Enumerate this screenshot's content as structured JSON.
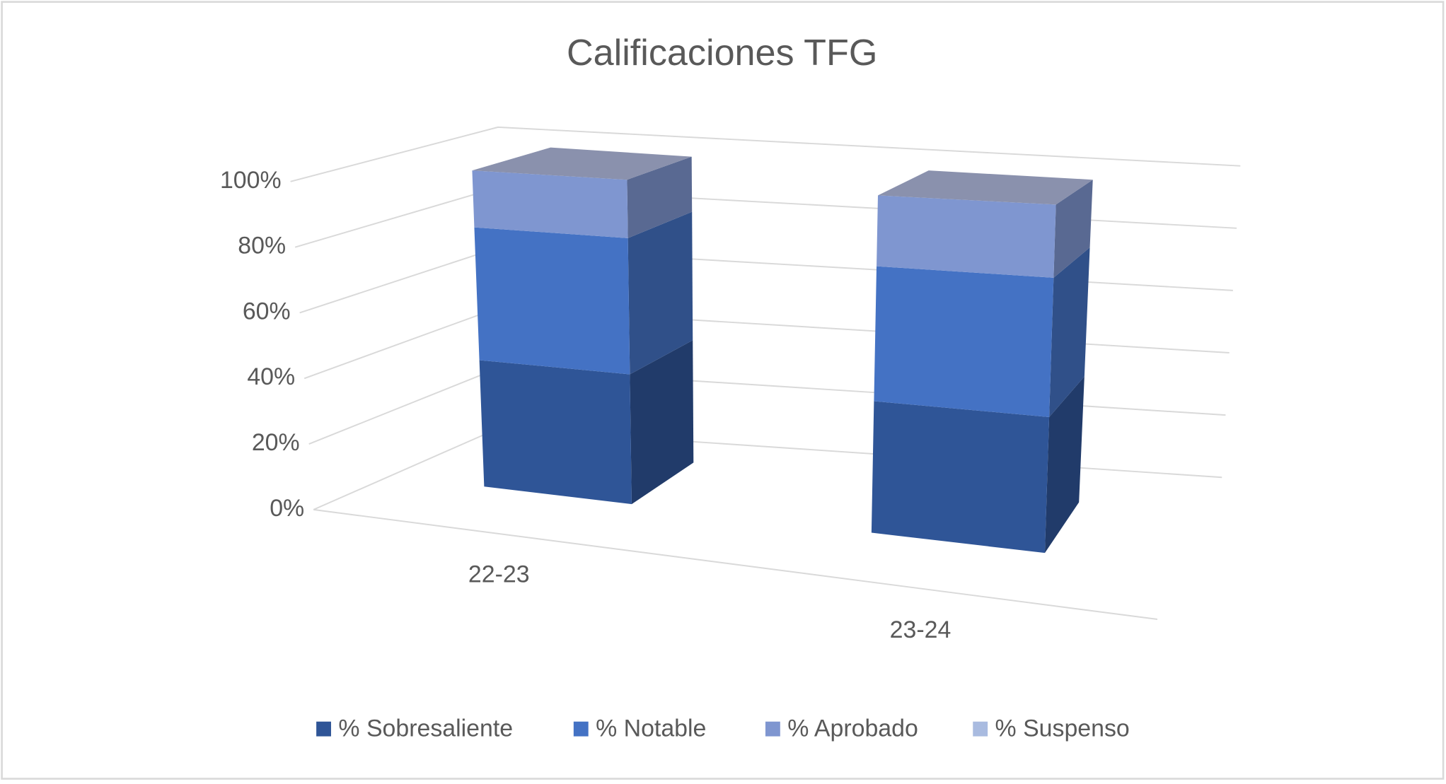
{
  "chart_data": {
    "type": "bar3d_stacked",
    "title": "Calificaciones TFG",
    "categories": [
      "22-23",
      "23-24"
    ],
    "series": [
      {
        "name": "% Sobresaliente",
        "color": "#2f5597",
        "values": [
          40,
          39
        ]
      },
      {
        "name": "% Notable",
        "color": "#4472c4",
        "values": [
          42,
          40
        ]
      },
      {
        "name": "% Aprobado",
        "color": "#7f96d0",
        "values": [
          18,
          21
        ]
      },
      {
        "name": "% Suspenso",
        "color": "#a9bbe0",
        "values": [
          0,
          0
        ]
      }
    ],
    "ylim": [
      0,
      100
    ],
    "yticks": [
      {
        "value": 0,
        "label": "0%"
      },
      {
        "value": 20,
        "label": "20%"
      },
      {
        "value": 40,
        "label": "40%"
      },
      {
        "value": 60,
        "label": "60%"
      },
      {
        "value": 80,
        "label": "80%"
      },
      {
        "value": 100,
        "label": "100%"
      }
    ],
    "grid": true,
    "legend": "bottom"
  }
}
